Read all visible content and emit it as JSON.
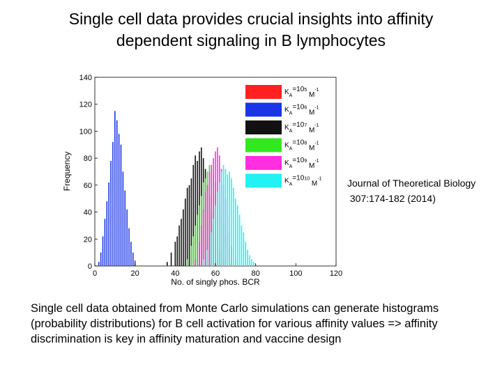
{
  "slide": {
    "title_line1": "Single cell data provides crucial insights into affinity",
    "title_line2": "dependent signaling in B lymphocytes",
    "citation_line1": "Journal of Theoretical Biology",
    "citation_line2": " 307:174-182 (2014)",
    "caption": "Single cell data obtained from Monte Carlo simulations can generate histograms (probability distributions) for B cell activation for various affinity values => affinity discrimination is key in affinity maturation and vaccine design"
  },
  "chart_data": {
    "type": "bar",
    "title": "",
    "xlabel": "No. of singly phos. BCR",
    "ylabel": "Frequency",
    "xlim": [
      0,
      120
    ],
    "ylim": [
      0,
      140
    ],
    "xticks": [
      0,
      20,
      40,
      60,
      80,
      100,
      120
    ],
    "yticks": [
      0,
      20,
      40,
      60,
      80,
      100,
      120,
      140
    ],
    "grid": false,
    "legend_position": "top-right",
    "series": [
      {
        "name": "K_A=10^5 M^-1",
        "label_base": "K",
        "label_sub": "A",
        "label_exp": "5",
        "label_unit": "M",
        "label_unit_exp": "-1",
        "color": "#ff2020",
        "x": [],
        "values": []
      },
      {
        "name": "K_A=10^6 M^-1",
        "label_base": "K",
        "label_sub": "A",
        "label_exp": "6",
        "label_unit": "M",
        "label_unit_exp": "-1",
        "color": "#1a35e6",
        "x": [
          2,
          3,
          4,
          5,
          6,
          7,
          8,
          9,
          10,
          11,
          12,
          13,
          14,
          15,
          16,
          17,
          18,
          19,
          20
        ],
        "values": [
          3,
          10,
          22,
          35,
          48,
          62,
          78,
          92,
          115,
          108,
          98,
          90,
          70,
          56,
          42,
          28,
          18,
          10,
          4
        ]
      },
      {
        "name": "K_A=10^7 M^-1",
        "label_base": "K",
        "label_sub": "A",
        "label_exp": "7",
        "label_unit": "M",
        "label_unit_exp": "-1",
        "color": "#111111",
        "x": [
          36,
          38,
          40,
          41,
          42,
          43,
          44,
          45,
          46,
          47,
          48,
          49,
          50,
          51,
          52,
          53,
          54,
          55,
          56,
          57,
          58,
          59,
          60,
          62,
          64
        ],
        "values": [
          3,
          10,
          18,
          22,
          30,
          35,
          42,
          50,
          58,
          60,
          65,
          75,
          82,
          78,
          85,
          88,
          80,
          72,
          60,
          52,
          40,
          32,
          20,
          12,
          5
        ]
      },
      {
        "name": "K_A=10^8 M^-1",
        "label_base": "K",
        "label_sub": "A",
        "label_exp": "8",
        "label_unit": "M",
        "label_unit_exp": "-1",
        "color": "#33e81f",
        "x": [
          46,
          48,
          49,
          50,
          51,
          52,
          53,
          54,
          55,
          56,
          57,
          58,
          59,
          60,
          61,
          62,
          63,
          64,
          65,
          66,
          68
        ],
        "values": [
          5,
          15,
          22,
          30,
          38,
          45,
          52,
          62,
          65,
          70,
          75,
          72,
          68,
          62,
          55,
          48,
          40,
          32,
          22,
          12,
          5
        ]
      },
      {
        "name": "K_A=10^9 M^-1",
        "label_base": "K",
        "label_sub": "A",
        "label_exp": "9",
        "label_unit": "M",
        "label_unit_exp": "-1",
        "color": "#ff2ee0",
        "x": [
          50,
          52,
          53,
          54,
          55,
          56,
          57,
          58,
          59,
          60,
          61,
          62,
          63,
          64,
          65,
          66,
          67,
          68,
          70
        ],
        "values": [
          5,
          18,
          30,
          42,
          55,
          60,
          70,
          75,
          80,
          85,
          88,
          82,
          72,
          60,
          50,
          38,
          25,
          15,
          6
        ]
      },
      {
        "name": "K_A=10^10 M^-1",
        "label_base": "K",
        "label_sub": "A",
        "label_exp": "10",
        "label_unit": "M",
        "label_unit_exp": "-1",
        "color": "#22f2f2",
        "x": [
          54,
          56,
          58,
          59,
          60,
          61,
          62,
          63,
          64,
          65,
          66,
          67,
          68,
          69,
          70,
          71,
          72,
          73,
          74,
          75,
          76,
          77,
          78,
          79,
          80
        ],
        "values": [
          5,
          12,
          25,
          35,
          45,
          55,
          62,
          70,
          75,
          72,
          68,
          70,
          65,
          58,
          50,
          45,
          38,
          30,
          25,
          18,
          12,
          8,
          5,
          3,
          1
        ]
      }
    ]
  }
}
